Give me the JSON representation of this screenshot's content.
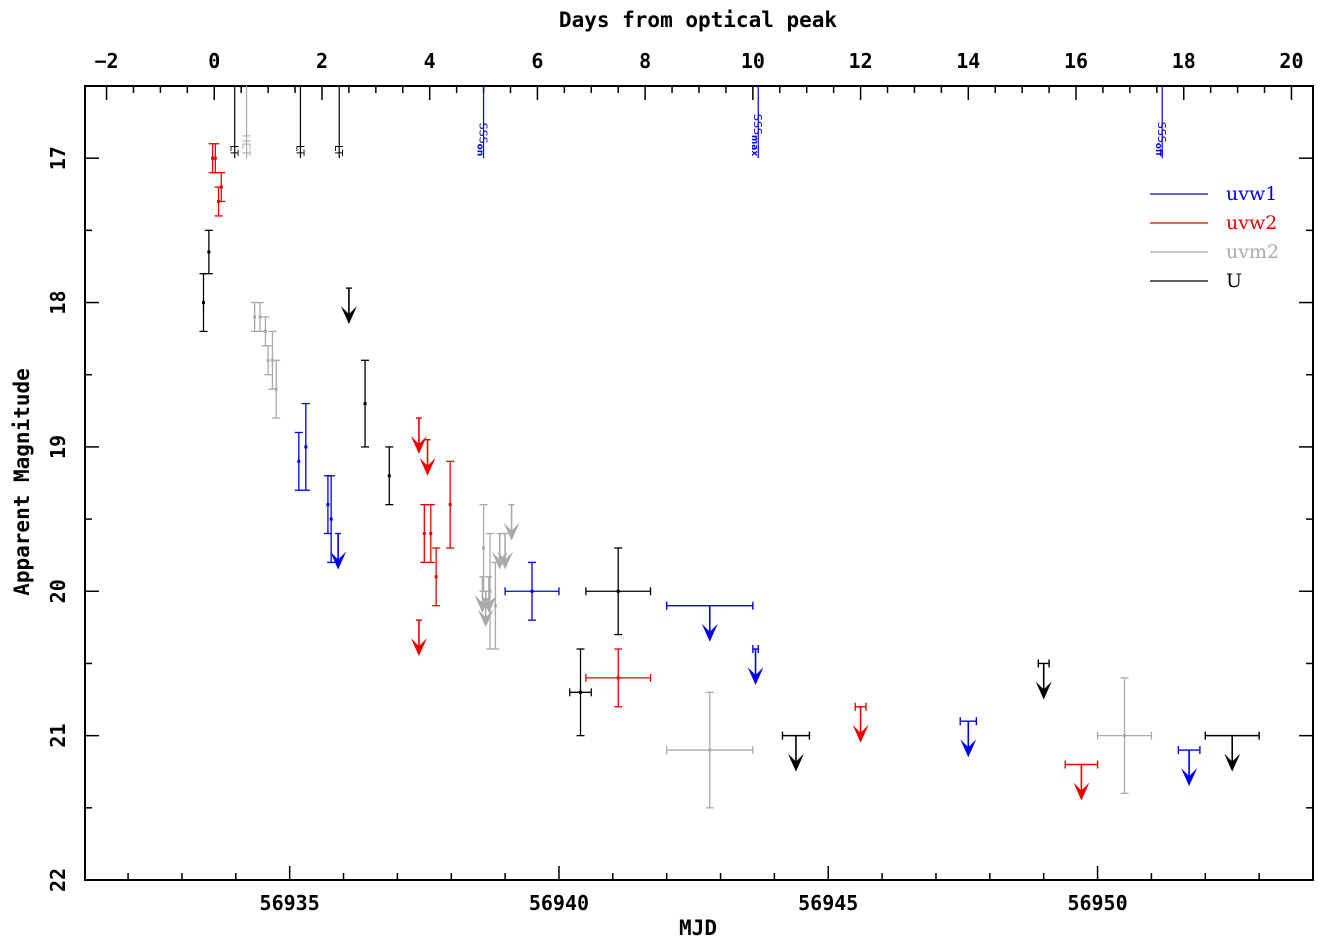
{
  "chart_data": {
    "type": "scatter",
    "xlabel": "MJD",
    "ylabel": "Apparent Magnitude",
    "top_xlabel": "Days from optical peak",
    "xlim": [
      56931.2,
      56954.0
    ],
    "ylim": [
      22,
      16.5
    ],
    "y_inverted": true,
    "peak_mjd": 56933.6,
    "x_ticks": [
      56935,
      56940,
      56945,
      56950
    ],
    "y_ticks": [
      17,
      18,
      19,
      20,
      21,
      22
    ],
    "top_ticks": [
      -2,
      0,
      2,
      4,
      6,
      8,
      10,
      12,
      14,
      16,
      18,
      20
    ],
    "colors": {
      "uvw1": "#0000ee",
      "uvw2": "#ee0000",
      "uvm2": "#aaaaaa",
      "U": "#000000"
    },
    "legend": {
      "placement": "top-right",
      "entries": [
        {
          "label": "uvw1",
          "color": "#0000ee"
        },
        {
          "label": "uvw2",
          "color": "#ee0000"
        },
        {
          "label": "uvm2",
          "color": "#aaaaaa"
        },
        {
          "label": "U",
          "color": "#000000"
        }
      ]
    },
    "annotations": [
      {
        "text": "LT",
        "x": 56933.98,
        "color": "#000000"
      },
      {
        "text": "HET",
        "x": 56934.2,
        "color": "#aaaaaa"
      },
      {
        "text": "LT",
        "x": 56935.2,
        "color": "#000000"
      },
      {
        "text": "LT",
        "x": 56935.92,
        "color": "#000000"
      },
      {
        "text": "SSS",
        "sub": "on",
        "x": 56938.6,
        "color": "#0000ee"
      },
      {
        "text": "SSS",
        "sub": "max",
        "x": 56943.7,
        "color": "#0000ee"
      },
      {
        "text": "SSS",
        "sub": "off",
        "x": 56951.2,
        "color": "#0000ee"
      }
    ],
    "series": [
      {
        "name": "uvw1",
        "color": "#0000ee",
        "detections": [
          {
            "x": 56935.17,
            "y": 19.1,
            "xerr": 0,
            "yerr": 0.2
          },
          {
            "x": 56935.3,
            "y": 19.0,
            "xerr": 0,
            "yerr": 0.3
          },
          {
            "x": 56935.71,
            "y": 19.4,
            "xerr": 0,
            "yerr": 0.2
          },
          {
            "x": 56935.77,
            "y": 19.5,
            "xerr": 0,
            "yerr": 0.3
          },
          {
            "x": 56939.5,
            "y": 20.0,
            "xerr": 0.5,
            "yerr": 0.2
          }
        ],
        "upper_limits": [
          {
            "x": 56935.9,
            "y": 19.6,
            "xerr": 0
          },
          {
            "x": 56942.8,
            "y": 20.1,
            "xerr": 0.8
          },
          {
            "x": 56943.65,
            "y": 20.4,
            "xerr": 0.05
          },
          {
            "x": 56947.6,
            "y": 20.9,
            "xerr": 0.15
          },
          {
            "x": 56951.7,
            "y": 21.1,
            "xerr": 0.2
          }
        ]
      },
      {
        "name": "uvw2",
        "color": "#ee0000",
        "detections": [
          {
            "x": 56933.57,
            "y": 17.0,
            "xerr": 0,
            "yerr": 0.1
          },
          {
            "x": 56933.62,
            "y": 17.0,
            "xerr": 0,
            "yerr": 0.1
          },
          {
            "x": 56933.68,
            "y": 17.3,
            "xerr": 0,
            "yerr": 0.1
          },
          {
            "x": 56933.73,
            "y": 17.2,
            "xerr": 0,
            "yerr": 0.1
          },
          {
            "x": 56937.5,
            "y": 19.6,
            "xerr": 0,
            "yerr": 0.2
          },
          {
            "x": 56937.62,
            "y": 19.6,
            "xerr": 0,
            "yerr": 0.2
          },
          {
            "x": 56937.72,
            "y": 19.9,
            "xerr": 0,
            "yerr": 0.2
          },
          {
            "x": 56937.98,
            "y": 19.4,
            "xerr": 0,
            "yerr": 0.3
          },
          {
            "x": 56941.1,
            "y": 20.6,
            "xerr": 0.6,
            "yerr": 0.2
          }
        ],
        "upper_limits": [
          {
            "x": 56937.4,
            "y": 18.8,
            "xerr": 0
          },
          {
            "x": 56937.56,
            "y": 18.95,
            "xerr": 0
          },
          {
            "x": 56937.4,
            "y": 20.2,
            "xerr": 0
          },
          {
            "x": 56945.6,
            "y": 20.8,
            "xerr": 0.1
          },
          {
            "x": 56949.7,
            "y": 21.2,
            "xerr": 0.3
          }
        ]
      },
      {
        "name": "uvm2",
        "color": "#aaaaaa",
        "detections": [
          {
            "x": 56934.35,
            "y": 18.1,
            "xerr": 0,
            "yerr": 0.1
          },
          {
            "x": 56934.45,
            "y": 18.1,
            "xerr": 0,
            "yerr": 0.1
          },
          {
            "x": 56934.55,
            "y": 18.2,
            "xerr": 0,
            "yerr": 0.1
          },
          {
            "x": 56934.6,
            "y": 18.4,
            "xerr": 0,
            "yerr": 0.1
          },
          {
            "x": 56934.68,
            "y": 18.4,
            "xerr": 0,
            "yerr": 0.2
          },
          {
            "x": 56934.75,
            "y": 18.6,
            "xerr": 0,
            "yerr": 0.2
          },
          {
            "x": 56938.6,
            "y": 19.7,
            "xerr": 0,
            "yerr": 0.3
          },
          {
            "x": 56938.72,
            "y": 20.0,
            "xerr": 0,
            "yerr": 0.4
          },
          {
            "x": 56938.82,
            "y": 20.1,
            "xerr": 0,
            "yerr": 0.3
          },
          {
            "x": 56942.8,
            "y": 21.1,
            "xerr": 0.8,
            "yerr": 0.4
          },
          {
            "x": 56950.5,
            "y": 21.0,
            "xerr": 0.5,
            "yerr": 0.4
          }
        ],
        "upper_limits": [
          {
            "x": 56938.58,
            "y": 19.9,
            "xerr": 0
          },
          {
            "x": 56938.64,
            "y": 20.0,
            "xerr": 0
          },
          {
            "x": 56938.7,
            "y": 19.9,
            "xerr": 0
          },
          {
            "x": 56938.9,
            "y": 19.6,
            "xerr": 0
          },
          {
            "x": 56939.0,
            "y": 19.6,
            "xerr": 0
          },
          {
            "x": 56939.12,
            "y": 19.4,
            "xerr": 0
          }
        ]
      },
      {
        "name": "U",
        "color": "#000000",
        "detections": [
          {
            "x": 56933.4,
            "y": 18.0,
            "xerr": 0,
            "yerr": 0.2
          },
          {
            "x": 56933.5,
            "y": 17.65,
            "xerr": 0,
            "yerr": 0.15
          },
          {
            "x": 56936.4,
            "y": 18.7,
            "xerr": 0,
            "yerr": 0.3
          },
          {
            "x": 56936.85,
            "y": 19.2,
            "xerr": 0,
            "yerr": 0.2
          },
          {
            "x": 56940.4,
            "y": 20.7,
            "xerr": 0.2,
            "yerr": 0.3
          },
          {
            "x": 56941.1,
            "y": 20.0,
            "xerr": 0.6,
            "yerr": 0.3
          }
        ],
        "upper_limits": [
          {
            "x": 56936.1,
            "y": 17.9,
            "xerr": 0
          },
          {
            "x": 56944.4,
            "y": 21.0,
            "xerr": 0.25
          },
          {
            "x": 56949.0,
            "y": 20.5,
            "xerr": 0.1
          },
          {
            "x": 56952.5,
            "y": 21.0,
            "xerr": 0.5
          }
        ]
      }
    ]
  }
}
